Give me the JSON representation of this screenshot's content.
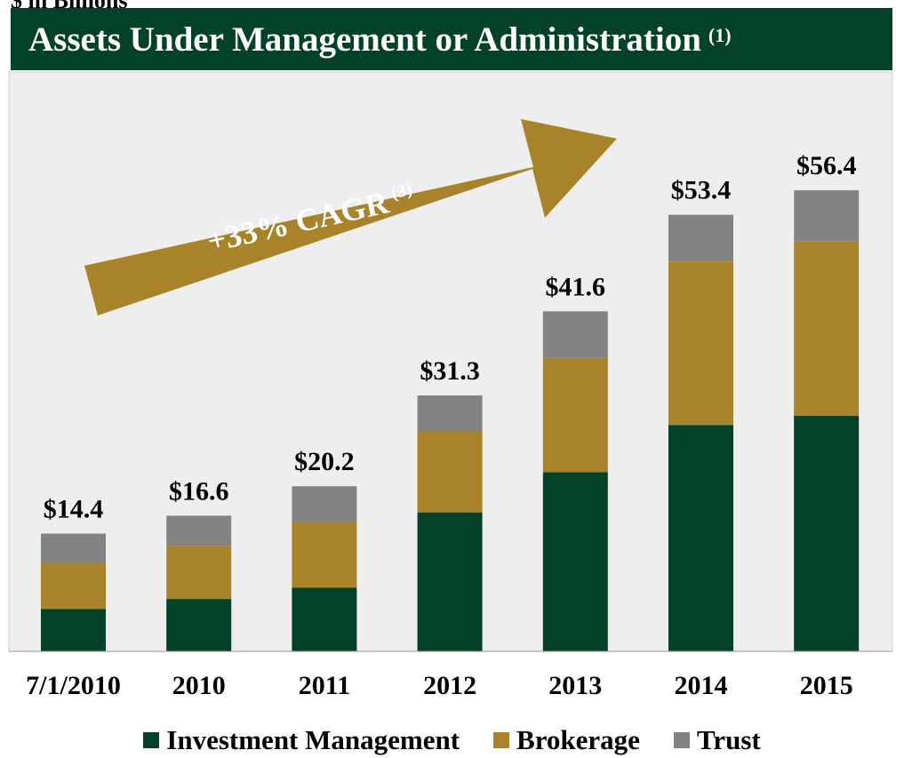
{
  "caption": "$ in Billions",
  "title": {
    "text": "Assets Under Management or Administration",
    "footnote": "(1)"
  },
  "arrow": {
    "text": "+33% CAGR",
    "footnote": "(3)"
  },
  "colors": {
    "investment_management": "#034229",
    "brokerage": "#A8832A",
    "trust": "#838383",
    "plot_background": "#EEEEEE",
    "arrow": "#A8832A"
  },
  "chart_data": {
    "type": "bar",
    "stacked": true,
    "title": "Assets Under Management or Administration",
    "categories": [
      "7/1/2010",
      "2010",
      "2011",
      "2012",
      "2013",
      "2014",
      "2015"
    ],
    "totals": [
      14.4,
      16.6,
      20.2,
      31.3,
      41.6,
      53.4,
      56.4
    ],
    "total_labels": [
      "$14.4",
      "$16.6",
      "$20.2",
      "$31.3",
      "$41.6",
      "$53.4",
      "$56.4"
    ],
    "series": [
      {
        "name": "Investment Management",
        "color": "#034229",
        "values": [
          5.2,
          6.4,
          7.8,
          17.0,
          21.9,
          27.7,
          28.8
        ]
      },
      {
        "name": "Brokerage",
        "color": "#A8832A",
        "values": [
          5.6,
          6.5,
          8.0,
          9.9,
          14.0,
          20.0,
          21.4
        ]
      },
      {
        "name": "Trust",
        "color": "#838383",
        "values": [
          3.6,
          3.7,
          4.4,
          4.4,
          5.7,
          5.7,
          6.2
        ]
      }
    ],
    "ylim": [
      0,
      75
    ],
    "grid": false,
    "legend_position": "bottom"
  }
}
